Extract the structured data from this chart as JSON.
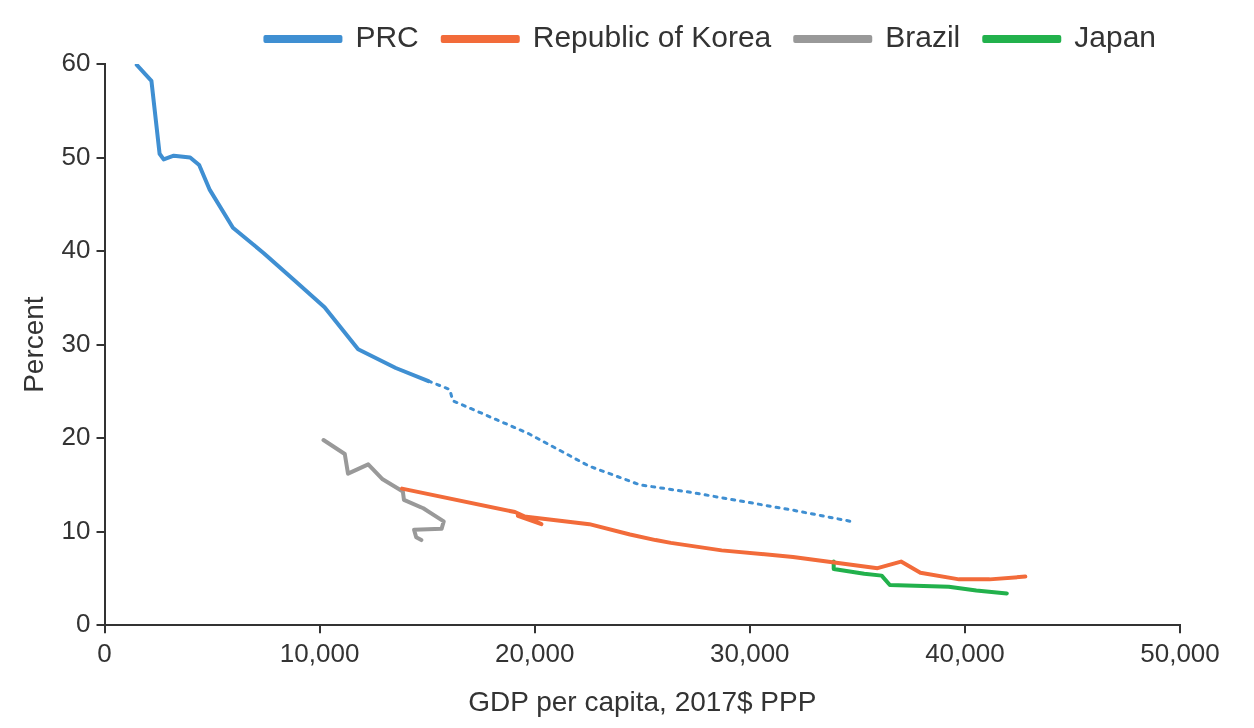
{
  "chart_data": {
    "type": "line",
    "xlabel": "GDP per capita, 2017$ PPP",
    "ylabel": "Percent",
    "xlim": [
      0,
      50000
    ],
    "xticks": [
      {
        "value": 0,
        "label": "0"
      },
      {
        "value": 10000,
        "label": "10,000"
      },
      {
        "value": 20000,
        "label": "20,000"
      },
      {
        "value": 30000,
        "label": "30,000"
      },
      {
        "value": 40000,
        "label": "40,000"
      },
      {
        "value": 50000,
        "label": "50,000"
      }
    ],
    "ylim": [
      0,
      60
    ],
    "yticks": [
      0,
      10,
      20,
      30,
      40,
      50,
      60
    ],
    "grid": false,
    "legend": "top",
    "marker": "none",
    "series": [
      {
        "name": "PRC",
        "color": "#3f8fd2",
        "line_style": "solid",
        "x": [
          1500,
          2180,
          2560,
          2750,
          3220,
          3980,
          4400,
          4880,
          5970,
          7390,
          8810,
          10230,
          11790,
          13540,
          15060
        ],
        "values": [
          59.9,
          58.2,
          50.4,
          49.8,
          50.2,
          50.0,
          49.2,
          46.6,
          42.5,
          39.8,
          36.9,
          34.0,
          29.5,
          27.5,
          26.1
        ]
      },
      {
        "color": "#3f8fd2",
        "line_style": "dotted",
        "x": [
          15060,
          16050,
          16190,
          19700,
          22540,
          24900,
          27270,
          32000,
          34700
        ],
        "values": [
          26.1,
          25.2,
          24.0,
          20.5,
          17.0,
          15.0,
          14.2,
          12.3,
          11.1
        ]
      },
      {
        "name": "Republic of Korea",
        "color": "#f26b3a",
        "line_style": "solid",
        "x": [
          13830,
          19080,
          20310,
          19220,
          22540,
          24430,
          25620,
          26330,
          28690,
          32010,
          35940,
          37030,
          37930,
          39730,
          41150,
          42810
        ],
        "values": [
          14.6,
          12.1,
          10.8,
          11.7,
          10.8,
          9.7,
          9.1,
          8.8,
          8.0,
          7.3,
          6.1,
          6.8,
          5.6,
          4.9,
          4.9,
          5.2
        ]
      },
      {
        "name": "Brazil",
        "color": "#999999",
        "line_style": "solid",
        "x": [
          10180,
          11170,
          11320,
          12260,
          12930,
          13870,
          13920,
          14820,
          15770,
          15670,
          14390,
          14490,
          14730
        ],
        "values": [
          19.8,
          18.3,
          16.2,
          17.2,
          15.6,
          14.3,
          13.4,
          12.5,
          11.1,
          10.3,
          10.2,
          9.4,
          9.1
        ]
      },
      {
        "name": "Japan",
        "color": "#22b14c",
        "line_style": "solid",
        "x": [
          33900,
          33900,
          35320,
          36130,
          36510,
          39250,
          40530,
          41950
        ],
        "values": [
          6.8,
          6.0,
          5.5,
          5.3,
          4.3,
          4.1,
          3.7,
          3.4
        ]
      }
    ]
  }
}
